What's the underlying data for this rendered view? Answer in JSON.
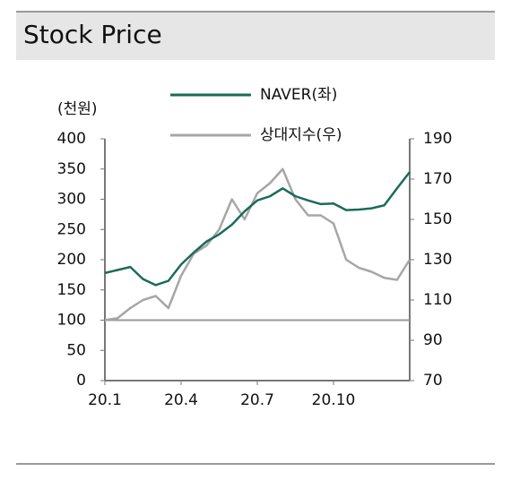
{
  "chart_data": {
    "type": "line",
    "title": "Stock Price",
    "y_label": "(천원)",
    "x": [
      0,
      0.5,
      1,
      1.5,
      2,
      2.5,
      3,
      3.5,
      4,
      4.5,
      5,
      5.5,
      6,
      6.5,
      7,
      7.5,
      8,
      8.5,
      9,
      9.5,
      10,
      10.5,
      11,
      11.5,
      12
    ],
    "xlim": [
      0,
      12
    ],
    "xticks": [
      {
        "value": 0,
        "label": "20.1"
      },
      {
        "value": 3,
        "label": "20.4"
      },
      {
        "value": 6,
        "label": "20.7"
      },
      {
        "value": 9,
        "label": "20.10"
      }
    ],
    "ylim": [
      0,
      400
    ],
    "yticks": [
      0,
      50,
      100,
      150,
      200,
      250,
      300,
      350,
      400
    ],
    "y2lim": [
      70,
      190
    ],
    "y2ticks": [
      70,
      90,
      110,
      130,
      150,
      170,
      190
    ],
    "reference_line": 100,
    "series": [
      {
        "name": "NAVER(좌)",
        "color": "#1a6b5a",
        "values": [
          178,
          183,
          188,
          168,
          158,
          165,
          192,
          212,
          230,
          242,
          258,
          280,
          298,
          305,
          318,
          305,
          298,
          292,
          293,
          282,
          283,
          285,
          290,
          318,
          345
        ]
      },
      {
        "name": "상대지수(우)",
        "color": "#a6a6a6",
        "axis": "y2",
        "values": [
          100,
          101,
          106,
          110,
          112,
          106,
          122,
          133,
          137,
          145,
          160,
          150,
          163,
          168,
          175,
          160,
          152,
          152,
          148,
          130,
          126,
          124,
          121,
          120,
          130
        ]
      }
    ]
  }
}
